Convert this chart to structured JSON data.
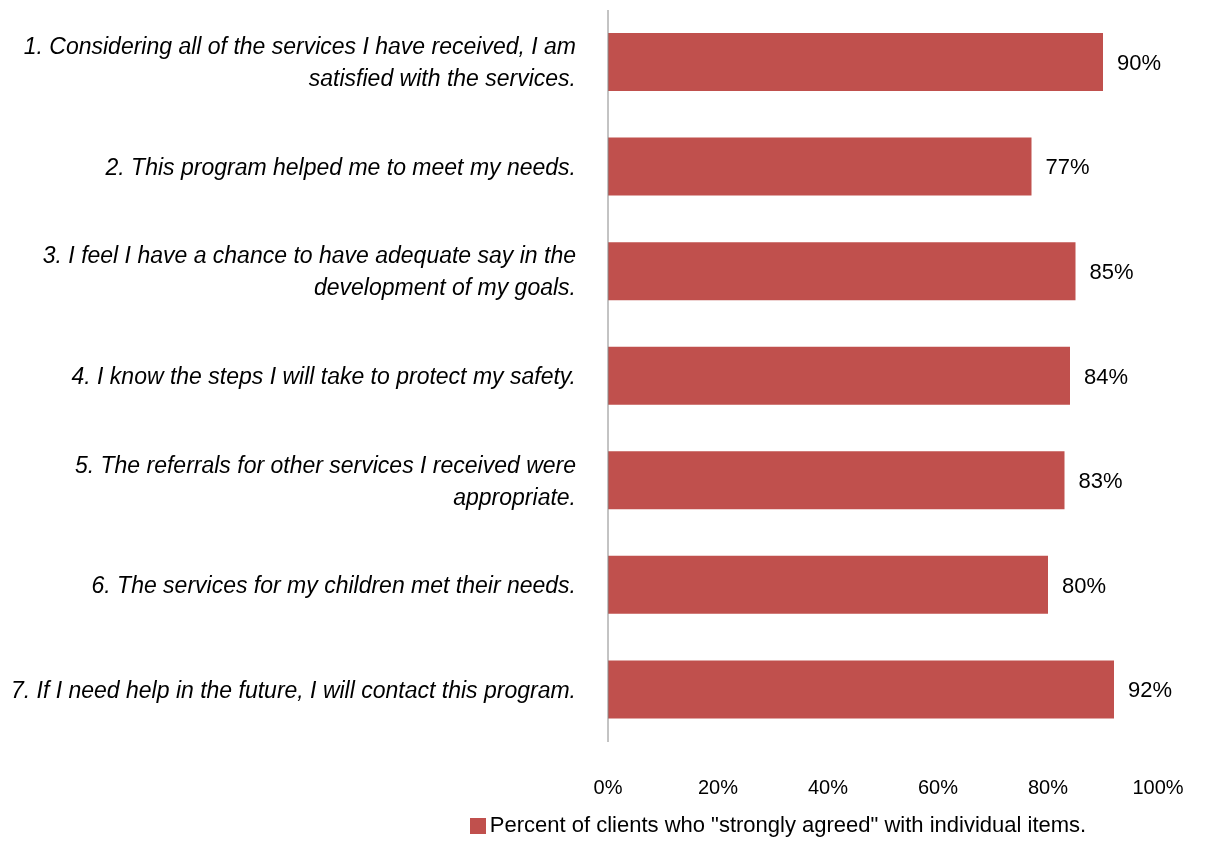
{
  "chart_data": {
    "type": "bar",
    "orientation": "horizontal",
    "categories": [
      "1. Considering all of the services I have received, I am satisfied with the services.",
      "2. This program helped me to meet my needs.",
      "3. I feel I have a chance to have adequate say in the development of my goals.",
      "4. I know the steps I will take to protect my safety.",
      "5. The referrals for other services I received were appropriate.",
      "6. The services for my children met their needs.",
      "7. If I need help in the future, I will contact this program."
    ],
    "series": [
      {
        "name": "Percent of clients who \"strongly agreed\" with individual items.",
        "color": "#c0504d",
        "values": [
          90,
          77,
          85,
          84,
          83,
          80,
          92
        ],
        "value_labels": [
          "90%",
          "77%",
          "85%",
          "84%",
          "83%",
          "80%",
          "92%"
        ]
      }
    ],
    "xlim": [
      0,
      100
    ],
    "xticks": [
      {
        "value": 0,
        "label": "0%"
      },
      {
        "value": 20,
        "label": "20%"
      },
      {
        "value": 40,
        "label": "40%"
      },
      {
        "value": 60,
        "label": "60%"
      },
      {
        "value": 80,
        "label": "80%"
      },
      {
        "value": 100,
        "label": "100%"
      }
    ],
    "grid": false,
    "legend": "bottom"
  }
}
